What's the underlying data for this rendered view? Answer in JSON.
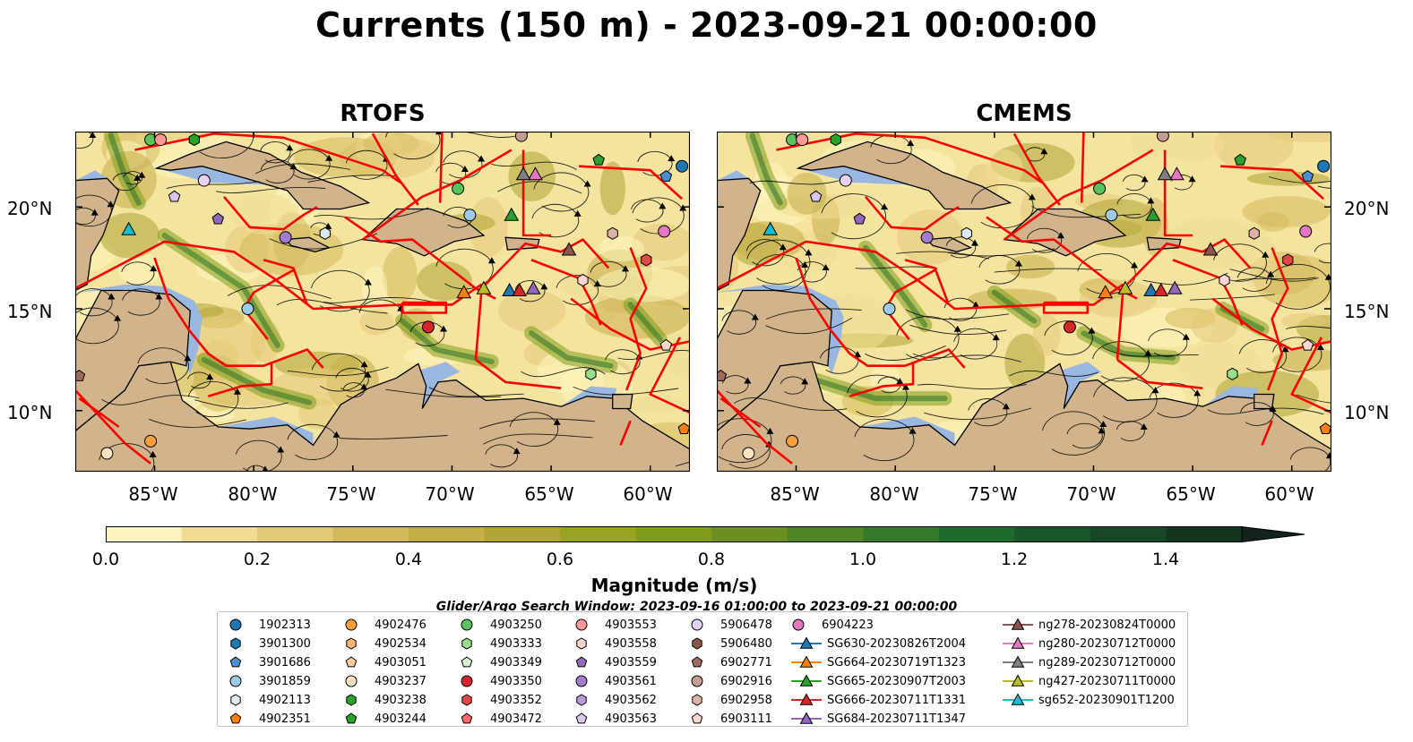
{
  "title": "Currents (150 m) - 2023-09-21 00:00:00",
  "panels": [
    {
      "title": "RTOFS"
    },
    {
      "title": "CMEMS"
    }
  ],
  "lat_labels": [
    "20°N",
    "15°N",
    "10°N"
  ],
  "lon_labels": [
    "85°W",
    "80°W",
    "75°W",
    "70°W",
    "65°W",
    "60°W"
  ],
  "colorbar": {
    "label": "Magnitude (m/s)",
    "ticks": [
      "0.0",
      "0.2",
      "0.4",
      "0.6",
      "0.8",
      "1.0",
      "1.2",
      "1.4"
    ],
    "min": 0.0,
    "max": 1.5,
    "colors": [
      "#fdf5bd",
      "#f1dc93",
      "#e3c878",
      "#d4b95c",
      "#c5ad49",
      "#afa434",
      "#98a323",
      "#7f9c1b",
      "#6b9020",
      "#4f8525",
      "#357a2b",
      "#1f6a2d",
      "#18582a",
      "#164826",
      "#15361e"
    ]
  },
  "search_window": "Glider/Argo Search Window: 2023-09-16 01:00:00 to 2023-09-21 00:00:00",
  "legend": [
    {
      "label": "1902313",
      "marker": "circle",
      "color": "#1f77b4"
    },
    {
      "label": "3901300",
      "marker": "hexagon",
      "color": "#1f77b4"
    },
    {
      "label": "3901686",
      "marker": "pentagon",
      "color": "#4a90d0"
    },
    {
      "label": "3901859",
      "marker": "circle",
      "color": "#9ecae9"
    },
    {
      "label": "4902113",
      "marker": "hexagon",
      "color": "#dbeaf7"
    },
    {
      "label": "4902351",
      "marker": "pentagon",
      "color": "#ff7f0e"
    },
    {
      "label": "4902476",
      "marker": "circle",
      "color": "#ff9f3c"
    },
    {
      "label": "4902534",
      "marker": "hexagon",
      "color": "#ffb574"
    },
    {
      "label": "4903051",
      "marker": "pentagon",
      "color": "#ffcc99"
    },
    {
      "label": "4903237",
      "marker": "circle",
      "color": "#ffe4c4"
    },
    {
      "label": "4903238",
      "marker": "hexagon",
      "color": "#2ca02c"
    },
    {
      "label": "4903244",
      "marker": "pentagon",
      "color": "#2ca02c"
    },
    {
      "label": "4903250",
      "marker": "circle",
      "color": "#5cc35c"
    },
    {
      "label": "4903333",
      "marker": "hexagon",
      "color": "#98df8a"
    },
    {
      "label": "4903349",
      "marker": "pentagon",
      "color": "#d4f5cc"
    },
    {
      "label": "4903350",
      "marker": "circle",
      "color": "#d62728"
    },
    {
      "label": "4903352",
      "marker": "hexagon",
      "color": "#e0484a"
    },
    {
      "label": "4903472",
      "marker": "pentagon",
      "color": "#f26b6b"
    },
    {
      "label": "4903553",
      "marker": "circle",
      "color": "#ff9896"
    },
    {
      "label": "4903558",
      "marker": "hexagon",
      "color": "#ffd3d0"
    },
    {
      "label": "4903559",
      "marker": "pentagon",
      "color": "#9467bd"
    },
    {
      "label": "4903561",
      "marker": "circle",
      "color": "#a27ccf"
    },
    {
      "label": "4903562",
      "marker": "hexagon",
      "color": "#b89ad9"
    },
    {
      "label": "4903563",
      "marker": "pentagon",
      "color": "#d9c6ec"
    },
    {
      "label": "5906478",
      "marker": "circle",
      "color": "#e5d2f5"
    },
    {
      "label": "5906480",
      "marker": "hexagon",
      "color": "#8c564b"
    },
    {
      "label": "6902771",
      "marker": "pentagon",
      "color": "#a06a5c"
    },
    {
      "label": "6902916",
      "marker": "circle",
      "color": "#c49c94"
    },
    {
      "label": "6902958",
      "marker": "hexagon",
      "color": "#dfb2a7"
    },
    {
      "label": "6903111",
      "marker": "pentagon",
      "color": "#f7d6cf"
    },
    {
      "label": "6904223",
      "marker": "circle",
      "color": "#e377c2"
    },
    {
      "label": "SG630-20230826T2004",
      "marker": "triangle-line",
      "color": "#1f77b4"
    },
    {
      "label": "SG664-20230719T1323",
      "marker": "triangle-line",
      "color": "#ff7f0e"
    },
    {
      "label": "SG665-20230907T2003",
      "marker": "triangle-line",
      "color": "#2ca02c"
    },
    {
      "label": "SG666-20230711T1331",
      "marker": "triangle-line",
      "color": "#d62728"
    },
    {
      "label": "SG684-20230711T1347",
      "marker": "triangle-line",
      "color": "#9467bd"
    },
    {
      "label": "ng278-20230824T0000",
      "marker": "triangle-line",
      "color": "#8c564b"
    },
    {
      "label": "ng280-20230712T0000",
      "marker": "triangle-line",
      "color": "#e377c2"
    },
    {
      "label": "ng289-20230712T0000",
      "marker": "triangle-line",
      "color": "#7f7f7f"
    },
    {
      "label": "ng427-20230711T0000",
      "marker": "triangle-line",
      "color": "#bcbd22"
    },
    {
      "label": "sg652-20230901T1200",
      "marker": "triangle-line",
      "color": "#17becf"
    }
  ],
  "platforms": [
    {
      "id": "1902313",
      "lon": -58.4,
      "lat": 22.0
    },
    {
      "id": "3901300",
      "lon": -84.7,
      "lat": 23.3
    },
    {
      "id": "3901686",
      "lon": -59.2,
      "lat": 21.5
    },
    {
      "id": "3901859",
      "lon": -69.1,
      "lat": 19.6
    },
    {
      "id": "3901859",
      "lon": -80.3,
      "lat": 15.0
    },
    {
      "id": "4902113",
      "lon": -76.4,
      "lat": 18.7
    },
    {
      "id": "4902351",
      "lon": -58.3,
      "lat": 9.1
    },
    {
      "id": "4902476",
      "lon": -85.2,
      "lat": 8.5
    },
    {
      "id": "4903237",
      "lon": -87.4,
      "lat": 7.9
    },
    {
      "id": "4903238",
      "lon": -83.0,
      "lat": 23.3
    },
    {
      "id": "4903244",
      "lon": -62.6,
      "lat": 22.3
    },
    {
      "id": "4903250",
      "lon": -85.2,
      "lat": 23.3
    },
    {
      "id": "4903250",
      "lon": -69.7,
      "lat": 20.9
    },
    {
      "id": "4903333",
      "lon": -63.0,
      "lat": 11.8
    },
    {
      "id": "4903350",
      "lon": -71.2,
      "lat": 14.1
    },
    {
      "id": "4903352",
      "lon": -60.2,
      "lat": 17.4
    },
    {
      "id": "4903553",
      "lon": -84.7,
      "lat": 23.3
    },
    {
      "id": "4903558",
      "lon": -63.4,
      "lat": 16.4
    },
    {
      "id": "4903559",
      "lon": -81.8,
      "lat": 19.4
    },
    {
      "id": "4903561",
      "lon": -78.4,
      "lat": 18.5
    },
    {
      "id": "4903563",
      "lon": -84.0,
      "lat": 20.5
    },
    {
      "id": "5906478",
      "lon": -82.5,
      "lat": 21.3
    },
    {
      "id": "6902771",
      "lon": -88.8,
      "lat": 11.7
    },
    {
      "id": "6902916",
      "lon": -66.5,
      "lat": 23.5
    },
    {
      "id": "6902958",
      "lon": -61.9,
      "lat": 18.7
    },
    {
      "id": "6903111",
      "lon": -59.2,
      "lat": 13.2
    },
    {
      "id": "6904223",
      "lon": -59.3,
      "lat": 18.8
    }
  ],
  "gliders": [
    {
      "id": "SG630",
      "lon": -67.1,
      "lat": 15.9
    },
    {
      "id": "SG664",
      "lon": -69.4,
      "lat": 15.8
    },
    {
      "id": "SG665",
      "lon": -67.0,
      "lat": 19.6
    },
    {
      "id": "SG666",
      "lon": -66.6,
      "lat": 15.9
    },
    {
      "id": "SG684",
      "lon": -65.9,
      "lat": 16.0
    },
    {
      "id": "ng278",
      "lon": -64.1,
      "lat": 17.9
    },
    {
      "id": "ng280",
      "lon": -65.8,
      "lat": 21.6
    },
    {
      "id": "ng289",
      "lon": -66.4,
      "lat": 21.6
    },
    {
      "id": "ng427",
      "lon": -68.4,
      "lat": 16.0
    },
    {
      "id": "sg652",
      "lon": -86.3,
      "lat": 18.9
    }
  ]
}
